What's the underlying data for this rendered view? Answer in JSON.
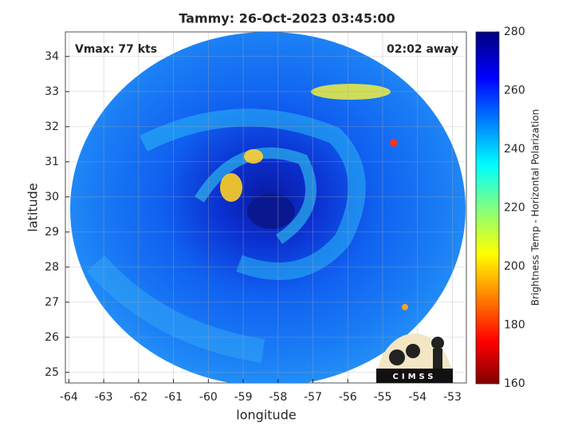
{
  "chart_data": {
    "type": "image",
    "title": "Tammy: 26-Oct-2023 03:45:00",
    "xlabel": "longitude",
    "ylabel": "latitude",
    "annotations": [
      "Vmax: 77 kts",
      "02:02 away"
    ],
    "logo": "CIMSS",
    "xlim": [
      -64.1,
      -52.6
    ],
    "xticks": [
      -64,
      -63,
      -62,
      -61,
      -60,
      -59,
      -58,
      -57,
      -56,
      -55,
      -54,
      -53
    ],
    "ylim": [
      24.7,
      34.7
    ],
    "yticks": [
      25,
      26,
      27,
      28,
      29,
      30,
      31,
      32,
      33,
      34
    ],
    "grid": true,
    "colorbar": {
      "label": "Brightness Temp - Horizontal Polarization",
      "lim": [
        160,
        280
      ],
      "ticks": [
        160,
        180,
        200,
        220,
        240,
        260,
        280
      ]
    }
  }
}
